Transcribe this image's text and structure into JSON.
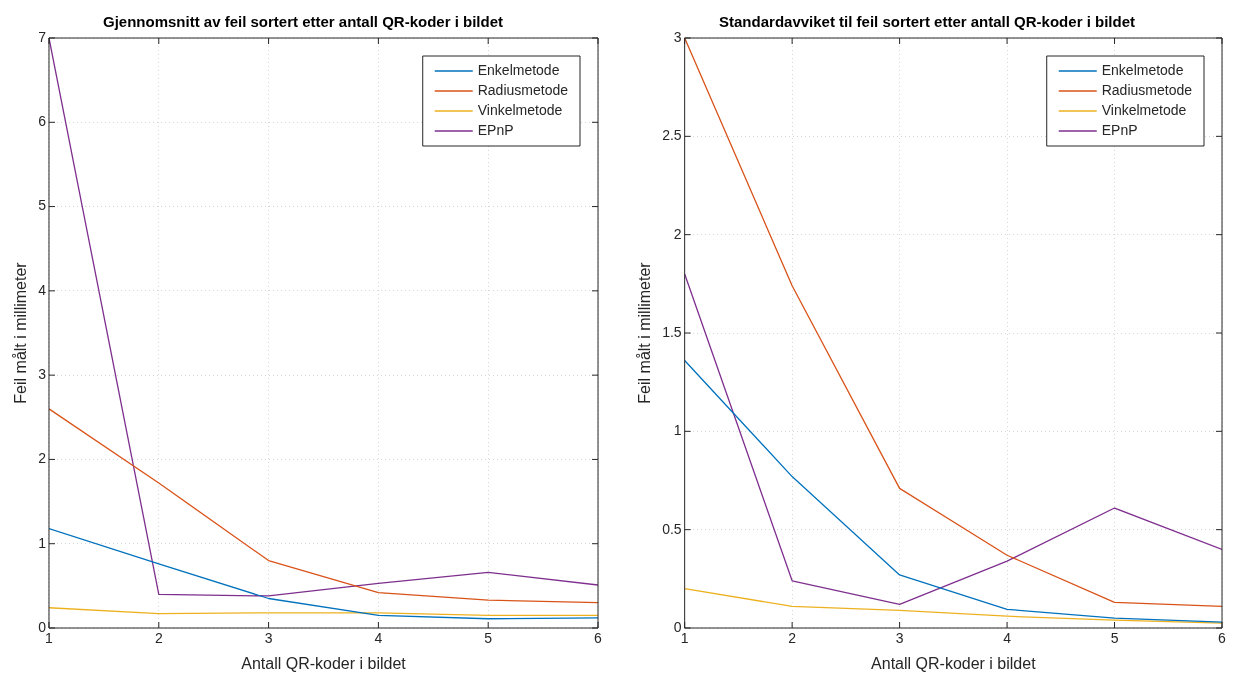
{
  "chart_data": [
    {
      "type": "line",
      "title": "Gjennomsnitt av feil sortert etter antall QR-koder i bildet",
      "xlabel": "Antall QR-koder i bildet",
      "ylabel": "Feil målt i millimeter",
      "x": [
        1,
        2,
        3,
        4,
        5,
        6
      ],
      "xlim": [
        1,
        6
      ],
      "xticks": [
        1,
        2,
        3,
        4,
        5,
        6
      ],
      "ylim": [
        0,
        7
      ],
      "yticks": [
        0,
        1,
        2,
        3,
        4,
        5,
        6,
        7
      ],
      "grid": true,
      "legend": "top right",
      "line_style": "solid",
      "marker": "none",
      "series": [
        {
          "name": "Enkelmetode",
          "color": "#0072bd",
          "values": [
            1.18,
            0.76,
            0.35,
            0.15,
            0.11,
            0.12
          ]
        },
        {
          "name": "Radiusmetode",
          "color": "#d95319",
          "values": [
            2.6,
            1.72,
            0.8,
            0.42,
            0.33,
            0.3
          ]
        },
        {
          "name": "Vinkelmetode",
          "color": "#edb120",
          "values": [
            0.24,
            0.17,
            0.18,
            0.18,
            0.15,
            0.15
          ]
        },
        {
          "name": "EPnP",
          "color": "#7e2f8e",
          "values": [
            7.0,
            0.4,
            0.38,
            0.53,
            0.66,
            0.51
          ]
        }
      ]
    },
    {
      "type": "line",
      "title": "Standardavviket til feil sortert etter antall QR-koder i bildet",
      "xlabel": "Antall QR-koder i bildet",
      "ylabel": "Feil målt i millimeter",
      "x": [
        1,
        2,
        3,
        4,
        5,
        6
      ],
      "xlim": [
        1,
        6
      ],
      "xticks": [
        1,
        2,
        3,
        4,
        5,
        6
      ],
      "ylim": [
        0,
        3
      ],
      "yticks": [
        0,
        0.5,
        1,
        1.5,
        2,
        2.5,
        3
      ],
      "grid": true,
      "legend": "top right",
      "line_style": "solid",
      "marker": "none",
      "series": [
        {
          "name": "Enkelmetode",
          "color": "#0072bd",
          "values": [
            1.36,
            0.77,
            0.27,
            0.095,
            0.05,
            0.03
          ]
        },
        {
          "name": "Radiusmetode",
          "color": "#d95319",
          "values": [
            3.0,
            1.74,
            0.71,
            0.37,
            0.13,
            0.11
          ]
        },
        {
          "name": "Vinkelmetode",
          "color": "#edb120",
          "values": [
            0.2,
            0.11,
            0.09,
            0.06,
            0.04,
            0.025
          ]
        },
        {
          "name": "EPnP",
          "color": "#7e2f8e",
          "values": [
            1.8,
            0.24,
            0.12,
            0.34,
            0.61,
            0.4
          ]
        }
      ]
    }
  ]
}
